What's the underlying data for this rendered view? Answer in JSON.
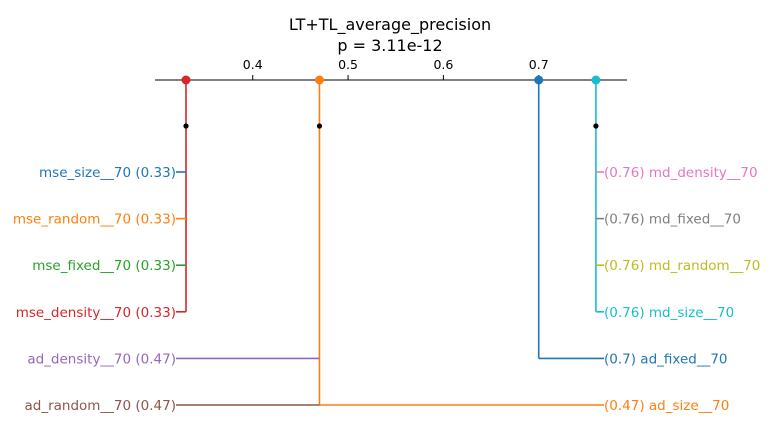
{
  "chart_data": {
    "type": "critical-difference",
    "title": "LT+TL_average_precision",
    "subtitle": "p = 3.11e-12",
    "axis": {
      "xlim": [
        0.3,
        0.8
      ],
      "ticks": [
        0.4,
        0.5,
        0.6,
        0.7
      ],
      "tick_labels": [
        "0.4",
        "0.5",
        "0.6",
        "0.7"
      ]
    },
    "left_items": [
      {
        "name": "mse_size__70",
        "value": 0.33,
        "value_label": "0.33",
        "color": "#1f77b4"
      },
      {
        "name": "mse_random__70",
        "value": 0.33,
        "value_label": "0.33",
        "color": "#ff7f0e"
      },
      {
        "name": "mse_fixed__70",
        "value": 0.33,
        "value_label": "0.33",
        "color": "#2ca02c"
      },
      {
        "name": "mse_density__70",
        "value": 0.33,
        "value_label": "0.33",
        "color": "#d62728"
      },
      {
        "name": "ad_density__70",
        "value": 0.47,
        "value_label": "0.47",
        "color": "#9467bd"
      },
      {
        "name": "ad_random__70",
        "value": 0.47,
        "value_label": "0.47",
        "color": "#8c564b"
      }
    ],
    "right_items": [
      {
        "name": "md_density__70",
        "value": 0.76,
        "value_label": "0.76",
        "color": "#e377c2"
      },
      {
        "name": "md_fixed__70",
        "value": 0.76,
        "value_label": "0.76",
        "color": "#7f7f7f"
      },
      {
        "name": "md_random__70",
        "value": 0.76,
        "value_label": "0.76",
        "color": "#bcbd22"
      },
      {
        "name": "md_size__70",
        "value": 0.76,
        "value_label": "0.76",
        "color": "#17becf"
      },
      {
        "name": "ad_fixed__70",
        "value": 0.7,
        "value_label": "0.7",
        "color": "#1f77b4"
      },
      {
        "name": "ad_size__70",
        "value": 0.47,
        "value_label": "0.47",
        "color": "#ff7f0e"
      }
    ],
    "groups": [
      {
        "value": 0.33,
        "color": "#d62728",
        "members_left": [
          0,
          1,
          2,
          3
        ],
        "members_right": []
      },
      {
        "value": 0.47,
        "color": "#ff7f0e",
        "members_left": [
          4,
          5
        ],
        "members_right": [
          5
        ]
      },
      {
        "value": 0.7,
        "color": "#1f77b4",
        "members_left": [],
        "members_right": [
          4
        ]
      },
      {
        "value": 0.76,
        "color": "#17becf",
        "members_left": [],
        "members_right": [
          0,
          1,
          2,
          3
        ]
      }
    ]
  }
}
